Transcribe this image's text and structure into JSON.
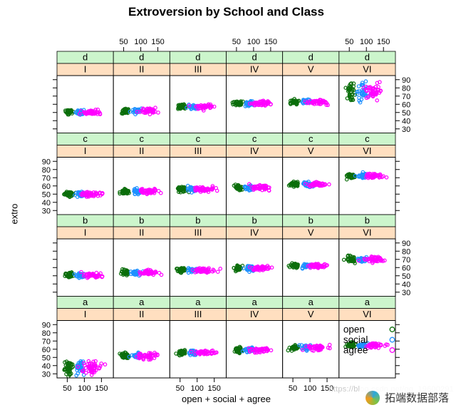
{
  "chart_data": {
    "type": "scatter",
    "title": "Extroversion by School and Class",
    "xlabel": "open + social + agree",
    "ylabel": "extro",
    "x_ticks": [
      50,
      100,
      150
    ],
    "y_ticks": [
      30,
      40,
      50,
      60,
      70,
      80,
      90
    ],
    "x_range": [
      20,
      185
    ],
    "y_range": [
      25,
      95
    ],
    "row_order_top_to_bottom": [
      "d",
      "c",
      "b",
      "a"
    ],
    "col_order": [
      "I",
      "II",
      "III",
      "IV",
      "V",
      "VI"
    ],
    "grid": false,
    "y_sd_default": 1.5,
    "series": [
      {
        "name": "open",
        "color": "#0b6e0b",
        "x_mean": 55,
        "x_sd": 6.5,
        "n": 38
      },
      {
        "name": "social",
        "color": "#1E90FF",
        "x_mean": 88,
        "x_sd": 7,
        "n": 32
      },
      {
        "name": "agree",
        "color": "#FF00FF",
        "x_mean": 122,
        "x_sd": 15,
        "n": 48
      }
    ],
    "panels": [
      {
        "school": "d",
        "class": "I",
        "extro": 50
      },
      {
        "school": "d",
        "class": "II",
        "extro": 52
      },
      {
        "school": "d",
        "class": "III",
        "extro": 57
      },
      {
        "school": "d",
        "class": "IV",
        "extro": 61
      },
      {
        "school": "d",
        "class": "V",
        "extro": 63
      },
      {
        "school": "d",
        "class": "VI",
        "extro": 76,
        "y_sd": 5
      },
      {
        "school": "c",
        "class": "I",
        "extro": 50
      },
      {
        "school": "c",
        "class": "II",
        "extro": 53
      },
      {
        "school": "c",
        "class": "III",
        "extro": 56
      },
      {
        "school": "c",
        "class": "IV",
        "extro": 58
      },
      {
        "school": "c",
        "class": "V",
        "extro": 62
      },
      {
        "school": "c",
        "class": "VI",
        "extro": 72
      },
      {
        "school": "b",
        "class": "I",
        "extro": 51
      },
      {
        "school": "b",
        "class": "II",
        "extro": 54
      },
      {
        "school": "b",
        "class": "III",
        "extro": 57
      },
      {
        "school": "b",
        "class": "IV",
        "extro": 59
      },
      {
        "school": "b",
        "class": "V",
        "extro": 62
      },
      {
        "school": "b",
        "class": "VI",
        "extro": 70
      },
      {
        "school": "a",
        "class": "I",
        "extro": 38,
        "y_sd": 4
      },
      {
        "school": "a",
        "class": "II",
        "extro": 52
      },
      {
        "school": "a",
        "class": "III",
        "extro": 56
      },
      {
        "school": "a",
        "class": "IV",
        "extro": 59
      },
      {
        "school": "a",
        "class": "V",
        "extro": 62
      },
      {
        "school": "a",
        "class": "VI",
        "extro": 65
      }
    ],
    "legend": {
      "items": [
        "open",
        "social",
        "agree"
      ],
      "position": "inside bottom-right panel"
    }
  },
  "colors": {
    "strip_school_bg": "#ccf5cc",
    "strip_class_bg": "#ffdfc0",
    "panel_border": "#000000",
    "tick_color": "#000000"
  },
  "watermark": {
    "url_text": "https://blog.csdn.net/qq_19600291",
    "logo_text": "拓端数据部落"
  }
}
